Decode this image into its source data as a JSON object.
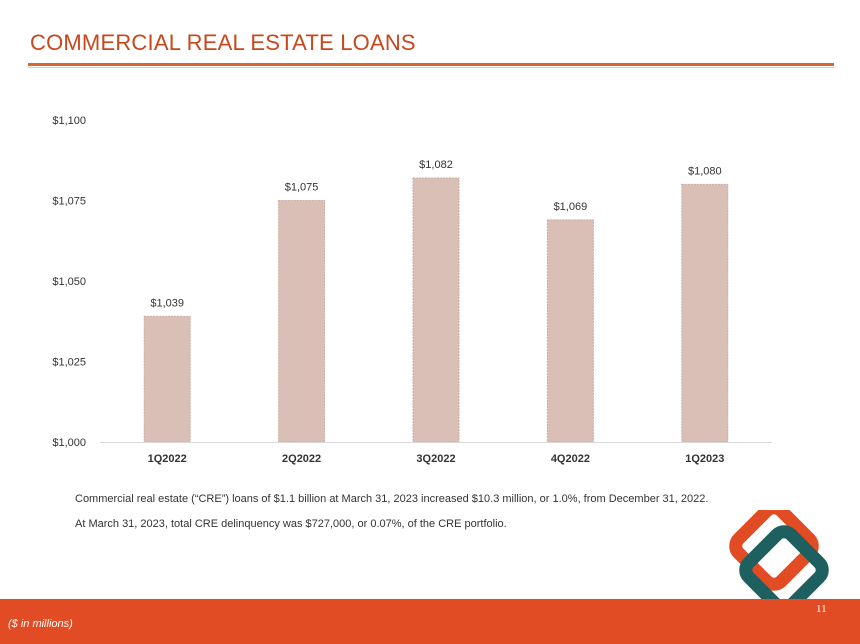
{
  "header": {
    "title": "COMMERCIAL REAL ESTATE LOANS"
  },
  "chart_data": {
    "type": "bar",
    "title": "",
    "xlabel": "",
    "ylabel": "",
    "categories": [
      "1Q2022",
      "2Q2022",
      "3Q2022",
      "4Q2022",
      "1Q2023"
    ],
    "values": [
      1039,
      1075,
      1082,
      1069,
      1080
    ],
    "data_labels": [
      "$1,039",
      "$1,075",
      "$1,082",
      "$1,069",
      "$1,080"
    ],
    "ylim": [
      1000,
      1100
    ],
    "yticks": [
      1000,
      1025,
      1050,
      1075,
      1100
    ],
    "ytick_labels": [
      "$1,000",
      "$1,025",
      "$1,050",
      "$1,075",
      "$1,100"
    ],
    "grid": false,
    "bar_color": "#d9bfb5"
  },
  "notes": [
    "Commercial real estate (“CRE”) loans of $1.1 billion at March 31, 2023 increased $10.3 million, or 1.0%, from December 31, 2022.",
    "At March 31, 2023, total CRE delinquency was $727,000, or 0.07%, of the CRE portfolio."
  ],
  "footer": {
    "units_note": "($ in millions)",
    "page_number": "11"
  },
  "colors": {
    "accent": "#c8471c",
    "footer": "#e24c25",
    "logo_orange": "#e24c25",
    "logo_teal": "#1e5f5f"
  },
  "logo": {
    "icon": "diamond-logo-icon"
  }
}
